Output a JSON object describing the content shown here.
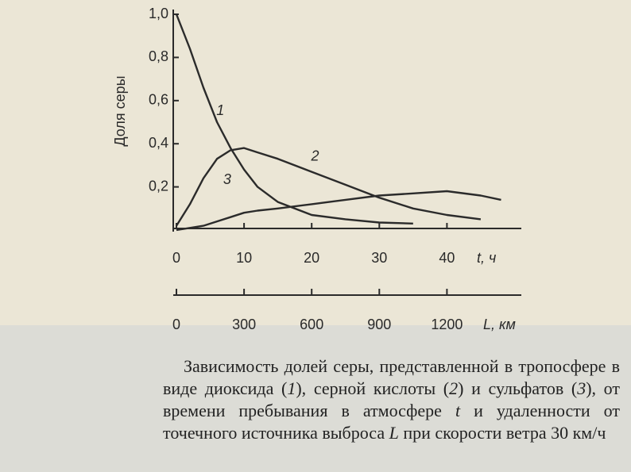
{
  "chart_data": {
    "type": "line",
    "ylabel": "Доля серы",
    "xlabel": "t, ч",
    "x2label": "L, км",
    "x": [
      0,
      2,
      4,
      6,
      8,
      10,
      12,
      15,
      20,
      25,
      30,
      35,
      40,
      45,
      48
    ],
    "series": [
      {
        "name": "1",
        "color": "#2b2b2b",
        "values": [
          1.0,
          0.84,
          0.66,
          0.5,
          0.38,
          0.28,
          0.2,
          0.13,
          0.07,
          0.05,
          0.035,
          0.03,
          null,
          null,
          null
        ]
      },
      {
        "name": "2",
        "color": "#2b2b2b",
        "values": [
          0.02,
          0.12,
          0.24,
          0.33,
          0.37,
          0.38,
          0.36,
          0.33,
          0.27,
          0.21,
          0.15,
          0.1,
          0.07,
          0.05,
          null
        ]
      },
      {
        "name": "3",
        "color": "#2b2b2b",
        "values": [
          0,
          0.01,
          0.02,
          0.04,
          0.06,
          0.08,
          0.09,
          0.1,
          0.12,
          0.14,
          0.16,
          0.17,
          0.18,
          0.16,
          0.14
        ]
      }
    ],
    "xlim": [
      0,
      51
    ],
    "xticks": [
      0,
      10,
      20,
      30,
      40
    ],
    "x2lim": [
      0,
      1530
    ],
    "x2ticks": [
      0,
      300,
      600,
      900,
      1200
    ],
    "ylim": [
      0,
      1.0
    ],
    "yticks": [
      {
        "value": 0.2,
        "label": "0,2"
      },
      {
        "value": 0.4,
        "label": "0,4"
      },
      {
        "value": 0.6,
        "label": "0,6"
      },
      {
        "value": 0.8,
        "label": "0,8"
      },
      {
        "value": 1.0,
        "label": "1,0"
      }
    ],
    "grid": false
  },
  "caption": [
    "Зависимость долей серы, представленной в тропосфере в виде диоксида (",
    "1",
    "), серной кислоты (",
    "2",
    ") и сульфатов (",
    "3",
    "), от времени пребывания в атмосфере ",
    "t",
    " и удаленности от точечного источника выброса ",
    "L",
    " при скорости ветра 30 км/ч"
  ]
}
